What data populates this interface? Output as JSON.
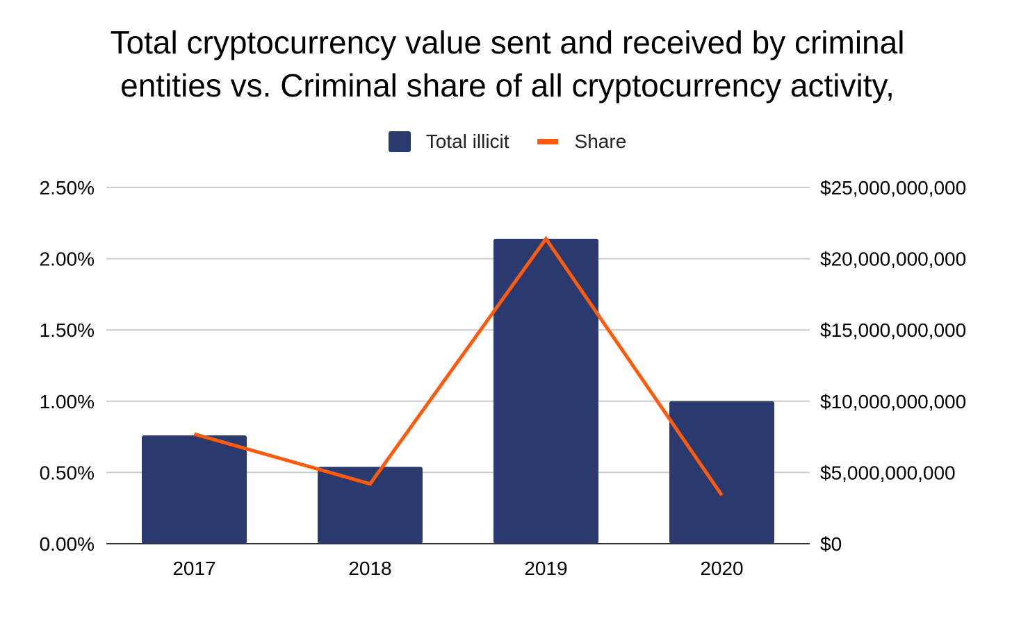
{
  "chart_data": {
    "type": "bar",
    "title_lines": [
      "Total cryptocurrency value sent and received by criminal",
      "entities vs. Criminal share of all cryptocurrency activity,"
    ],
    "categories": [
      "2017",
      "2018",
      "2019",
      "2020"
    ],
    "series": [
      {
        "name": "Total illicit",
        "type": "bar",
        "axis": "right",
        "color": "#2b3a6e",
        "values": [
          7600000000,
          5400000000,
          21400000000,
          10000000000
        ]
      },
      {
        "name": "Share",
        "type": "line",
        "axis": "left",
        "color": "#ff5a0e",
        "values": [
          0.77,
          0.42,
          2.14,
          0.34
        ]
      }
    ],
    "left_axis": {
      "range": [
        0,
        2.5
      ],
      "ticks": [
        0,
        0.5,
        1.0,
        1.5,
        2.0,
        2.5
      ],
      "tick_labels": [
        "0.00%",
        "0.50%",
        "1.00%",
        "1.50%",
        "2.00%",
        "2.50%"
      ]
    },
    "right_axis": {
      "range": [
        0,
        25000000000
      ],
      "ticks": [
        0,
        5000000000,
        10000000000,
        15000000000,
        20000000000,
        25000000000
      ],
      "tick_labels": [
        "$0",
        "$5,000,000,000",
        "$10,000,000,000",
        "$15,000,000,000",
        "$20,000,000,000",
        "$25,000,000,000"
      ]
    },
    "legend_position": "top-center",
    "grid": true,
    "gridline_color": "#cccccc",
    "baseline_color": "#333333"
  }
}
